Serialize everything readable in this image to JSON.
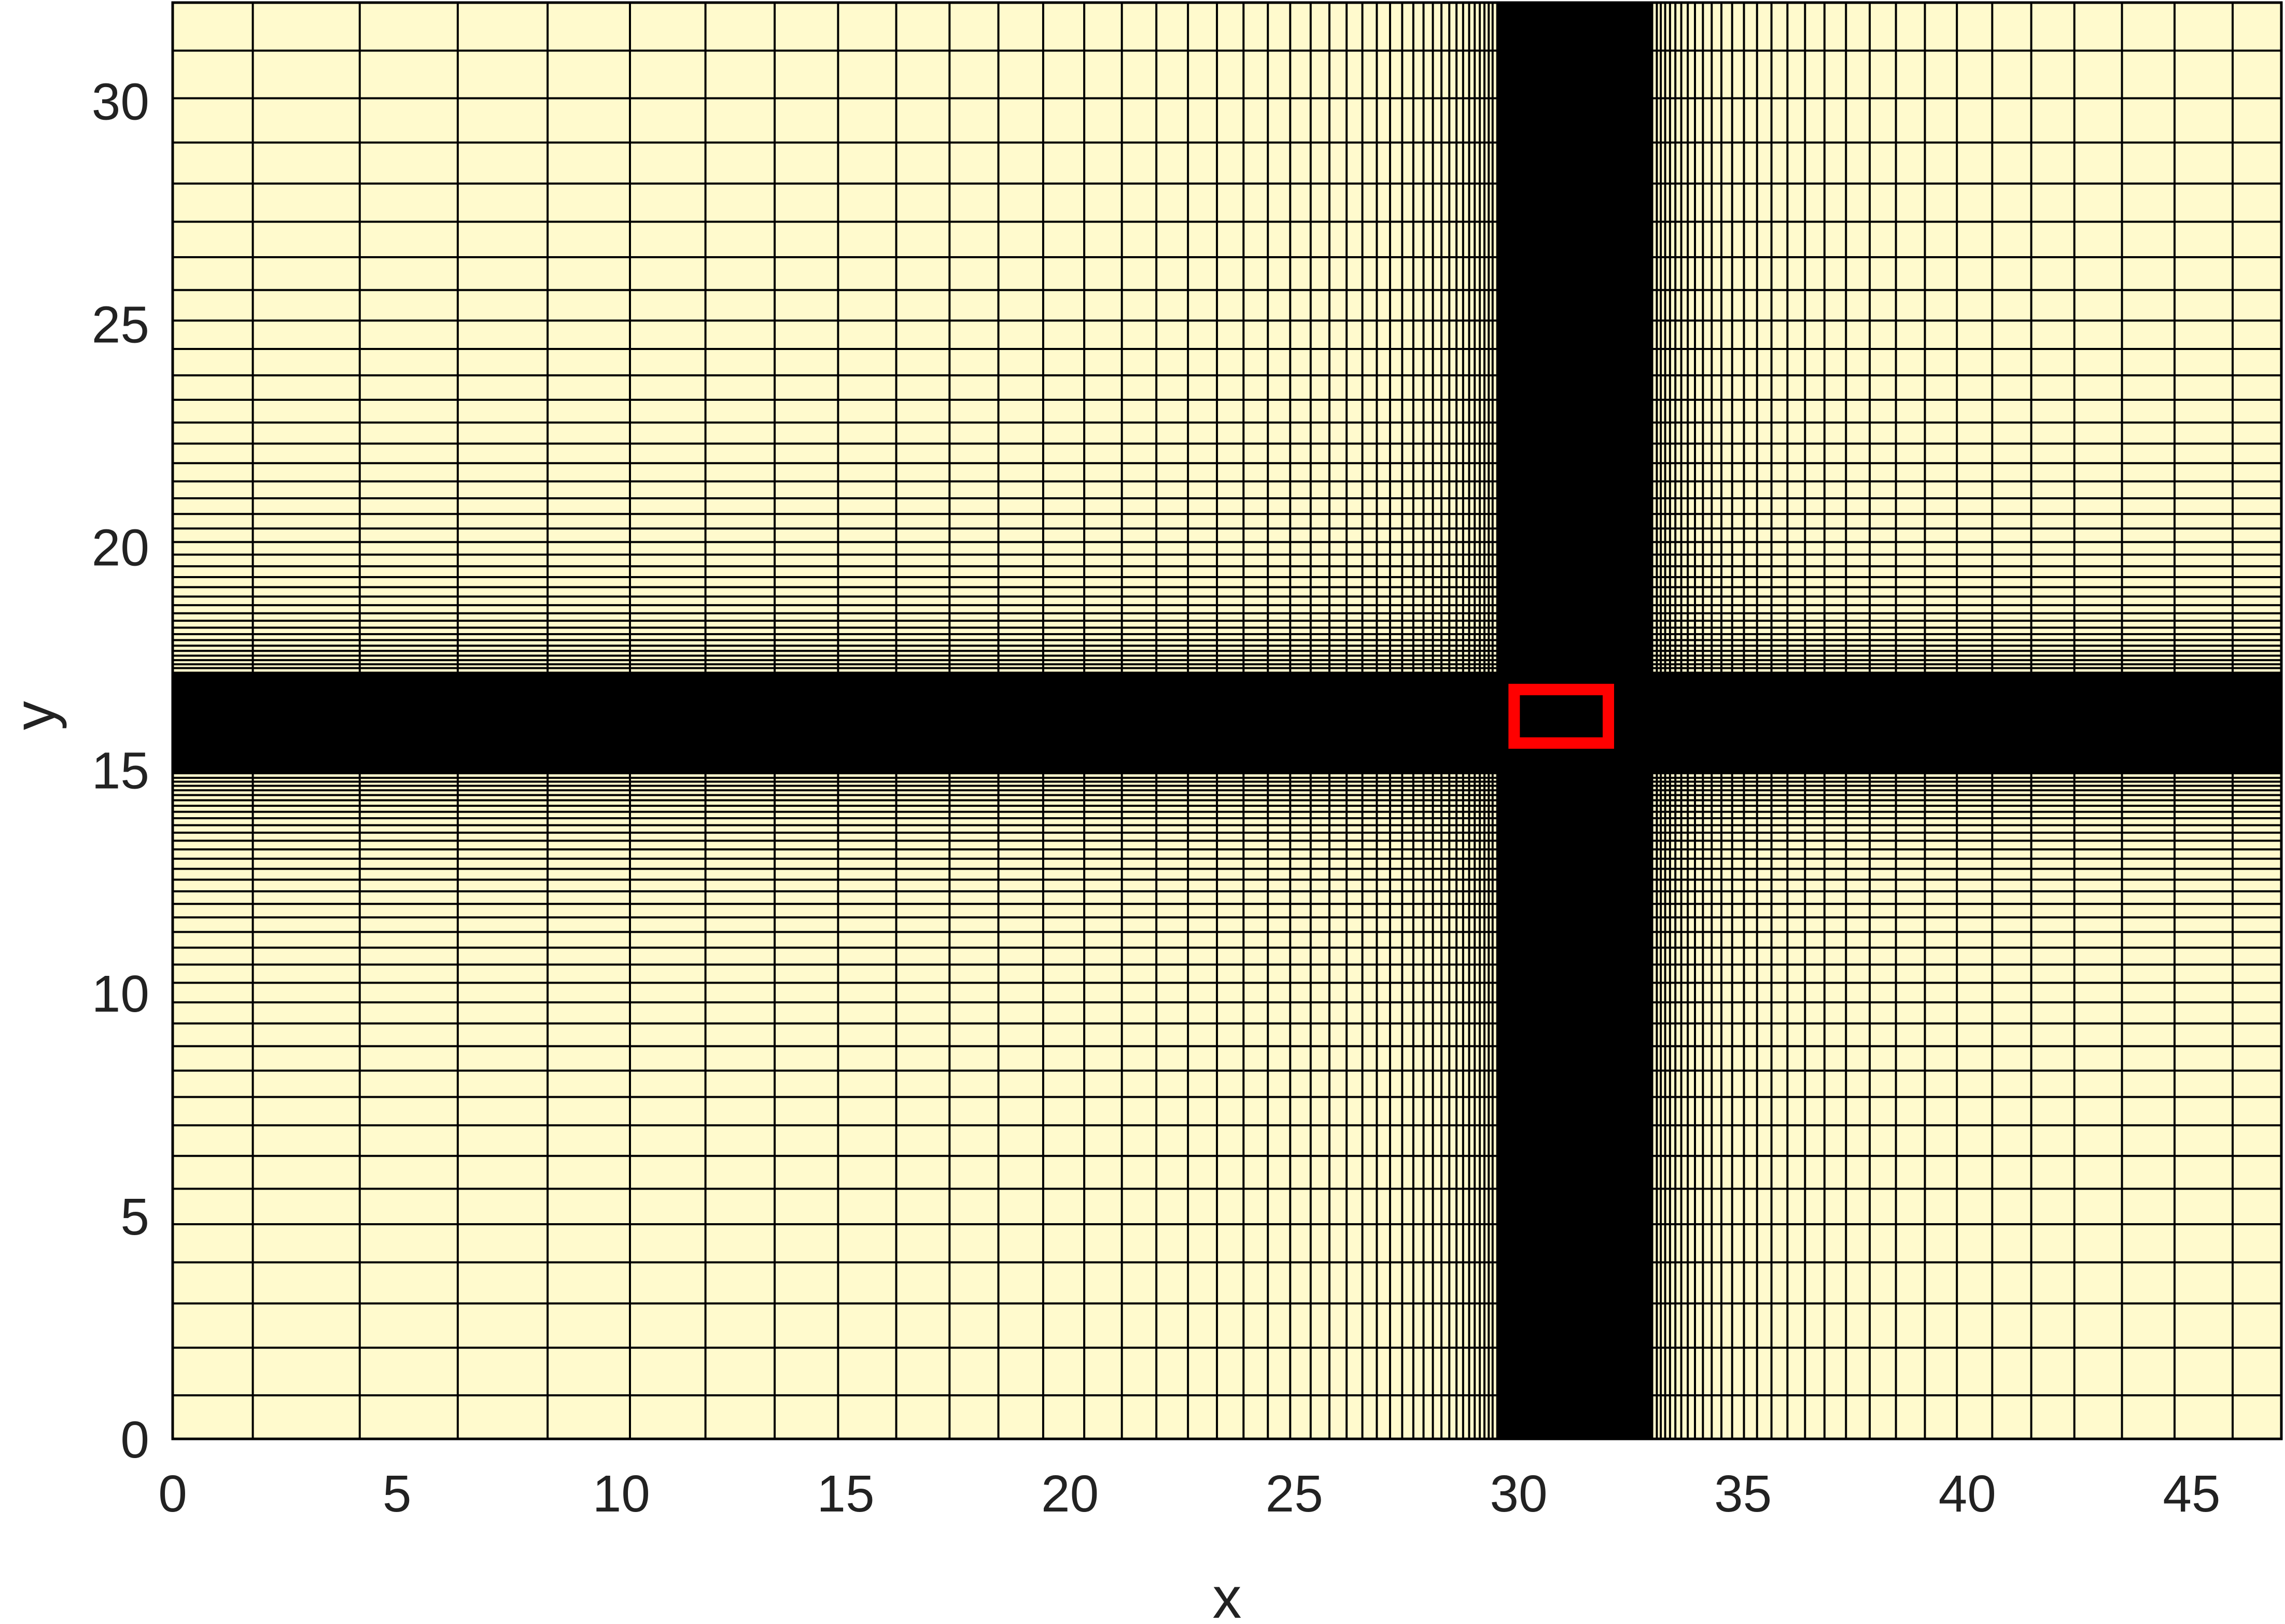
{
  "colors": {
    "background": "#ffffff",
    "plot_fill": "#fffacd",
    "grid_line": "#000000",
    "highlight_box": "#ff0000",
    "text": "#222222"
  },
  "chart_data": {
    "type": "mesh",
    "xlabel": "x",
    "ylabel": "y",
    "xlim": [
      0,
      47
    ],
    "ylim": [
      0,
      32.2
    ],
    "x_ticks": [
      0,
      5,
      10,
      15,
      20,
      25,
      30,
      35,
      40,
      45
    ],
    "y_ticks": [
      0,
      5,
      10,
      15,
      20,
      25,
      30
    ],
    "x_tick_labels": [
      "0",
      "5",
      "10",
      "15",
      "20",
      "25",
      "30",
      "35",
      "40",
      "45"
    ],
    "y_tick_labels": [
      "0",
      "5",
      "10",
      "15",
      "20",
      "25",
      "30"
    ],
    "mesh": {
      "x_fine_region": [
        29.5,
        33.0
      ],
      "y_fine_region": [
        14.9,
        17.2
      ],
      "x_coarse_spacing_at_boundary": 2.6,
      "y_coarse_spacing_at_boundary": 1.15,
      "coarse_spacing_near_fine_region": 0.08
    },
    "highlight_box": {
      "x_range": [
        29.9,
        32.0
      ],
      "y_range": [
        15.6,
        16.8
      ]
    }
  }
}
